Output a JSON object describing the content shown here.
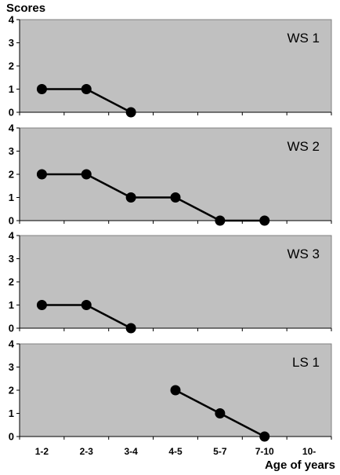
{
  "chart_data": {
    "type": "line",
    "ylabel": "Scores",
    "xlabel": "Age of years",
    "categories": [
      "1-2",
      "2-3",
      "3-4",
      "4-5",
      "5-7",
      "7-10",
      "10-"
    ],
    "ylim": [
      0,
      4
    ],
    "yticks": [
      0,
      1,
      2,
      3,
      4
    ],
    "grid": false,
    "background_color": "#c0c0c0",
    "line_color": "#000000",
    "panels": [
      {
        "name": "WS 1",
        "values": [
          1,
          1,
          0,
          null,
          null,
          null,
          null
        ]
      },
      {
        "name": "WS 2",
        "values": [
          2,
          2,
          1,
          1,
          0,
          0,
          null
        ]
      },
      {
        "name": "WS 3",
        "values": [
          1,
          1,
          0,
          null,
          null,
          null,
          null
        ]
      },
      {
        "name": "LS 1",
        "values": [
          null,
          null,
          null,
          2,
          1,
          0,
          null
        ]
      }
    ]
  }
}
